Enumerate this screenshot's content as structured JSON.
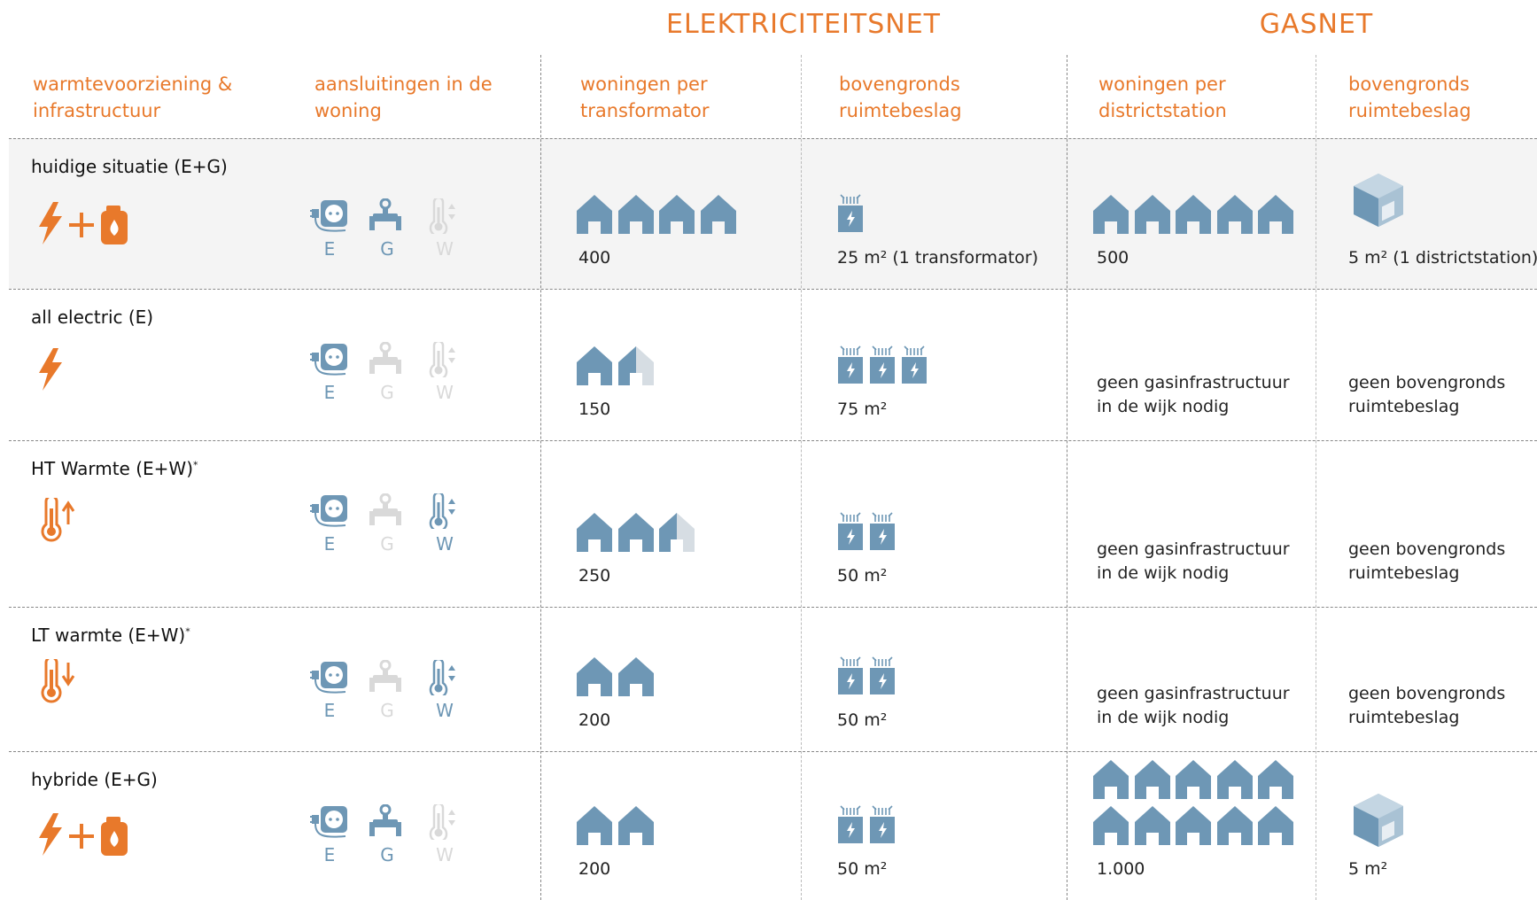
{
  "header": {
    "groups": [
      "ELEKTRICITEITSNET",
      "GASNET"
    ],
    "columns": [
      "warmtevoorziening & infrastructuur",
      "aansluitingen in de woning",
      "woningen per transformator",
      "bovengronds ruimtebeslag",
      "woningen per districtstation",
      "bovengronds ruimtebeslag"
    ]
  },
  "table": {
    "rows": [
      {
        "name": "huidige situatie (E+G)",
        "connections": [
          {
            "label": "E",
            "active": true
          },
          {
            "label": "G",
            "active": true
          },
          {
            "label": "W",
            "active": false
          }
        ],
        "homes_per_transformer": 400,
        "transformer_area": {
          "value": 25,
          "label": "25 m² (1 transformator)"
        },
        "homes_per_district_station": 500,
        "district_area": {
          "value": 5,
          "label": "5 m² (1 districtstation)"
        }
      },
      {
        "name": "all electric (E)",
        "connections": [
          {
            "label": "E",
            "active": true
          },
          {
            "label": "G",
            "active": false
          },
          {
            "label": "W",
            "active": false
          }
        ],
        "homes_per_transformer": 150,
        "transformer_area": {
          "value": 75,
          "label": "75 m²"
        },
        "gas_note": "geen gasinfrastructuur in de wijk nodig",
        "area_note": "geen bovengronds ruimtebeslag"
      },
      {
        "name": "HT Warmte (E+W)",
        "footnote": "*",
        "connections": [
          {
            "label": "E",
            "active": true
          },
          {
            "label": "G",
            "active": false
          },
          {
            "label": "W",
            "active": true
          }
        ],
        "homes_per_transformer": 250,
        "transformer_area": {
          "value": 50,
          "label": "50 m²"
        },
        "gas_note": "geen gasinfrastructuur in de wijk nodig",
        "area_note": "geen bovengronds ruimtebeslag"
      },
      {
        "name": "LT warmte (E+W)",
        "footnote": "*",
        "connections": [
          {
            "label": "E",
            "active": true
          },
          {
            "label": "G",
            "active": false
          },
          {
            "label": "W",
            "active": true
          }
        ],
        "homes_per_transformer": 200,
        "transformer_area": {
          "value": 50,
          "label": "50 m²"
        },
        "gas_note": "geen gasinfrastructuur in de wijk nodig",
        "area_note": "geen bovengronds ruimtebeslag"
      },
      {
        "name": "hybride (E+G)",
        "connections": [
          {
            "label": "E",
            "active": true
          },
          {
            "label": "G",
            "active": true
          },
          {
            "label": "W",
            "active": false
          }
        ],
        "homes_per_transformer": 200,
        "transformer_area": {
          "value": 50,
          "label": "50 m²"
        },
        "homes_per_district_station": {
          "value": 1000,
          "label": "1.000"
        },
        "district_area": {
          "value": 5,
          "label": "5 m²"
        }
      }
    ]
  }
}
